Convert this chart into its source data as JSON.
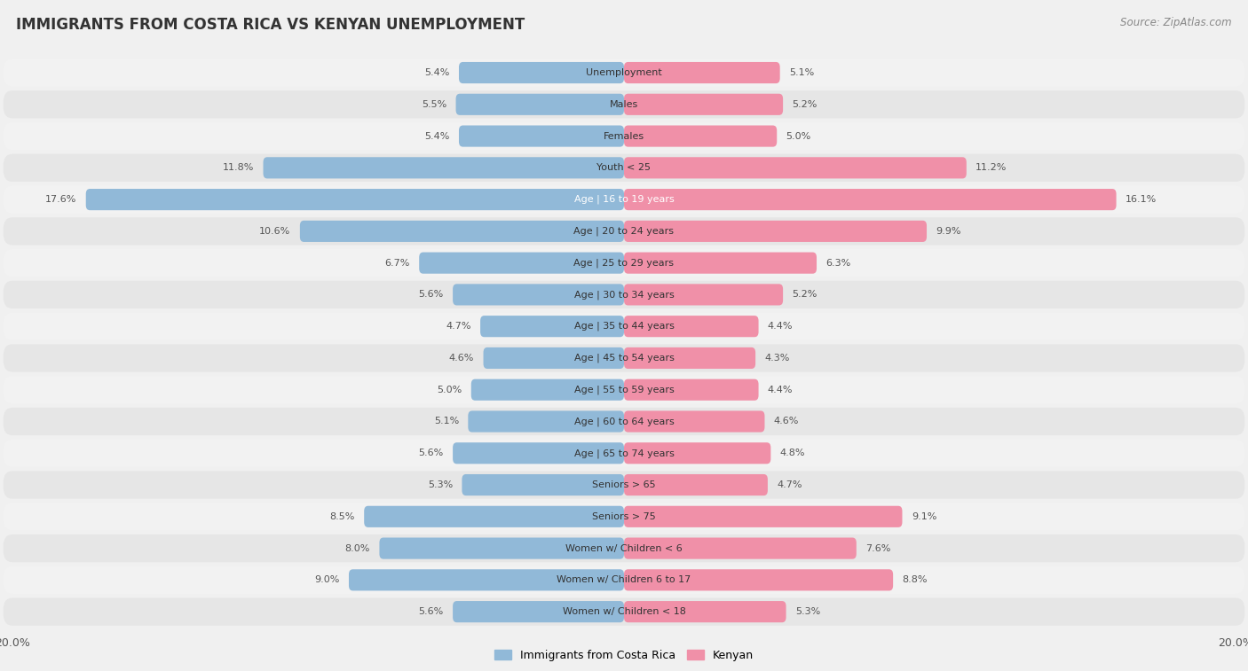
{
  "title": "IMMIGRANTS FROM COSTA RICA VS KENYAN UNEMPLOYMENT",
  "source": "Source: ZipAtlas.com",
  "categories": [
    "Unemployment",
    "Males",
    "Females",
    "Youth < 25",
    "Age | 16 to 19 years",
    "Age | 20 to 24 years",
    "Age | 25 to 29 years",
    "Age | 30 to 34 years",
    "Age | 35 to 44 years",
    "Age | 45 to 54 years",
    "Age | 55 to 59 years",
    "Age | 60 to 64 years",
    "Age | 65 to 74 years",
    "Seniors > 65",
    "Seniors > 75",
    "Women w/ Children < 6",
    "Women w/ Children 6 to 17",
    "Women w/ Children < 18"
  ],
  "left_values": [
    5.4,
    5.5,
    5.4,
    11.8,
    17.6,
    10.6,
    6.7,
    5.6,
    4.7,
    4.6,
    5.0,
    5.1,
    5.6,
    5.3,
    8.5,
    8.0,
    9.0,
    5.6
  ],
  "right_values": [
    5.1,
    5.2,
    5.0,
    11.2,
    16.1,
    9.9,
    6.3,
    5.2,
    4.4,
    4.3,
    4.4,
    4.6,
    4.8,
    4.7,
    9.1,
    7.6,
    8.8,
    5.3
  ],
  "left_color": "#91b9d8",
  "right_color": "#f090a8",
  "left_color_dark": "#6096c4",
  "right_color_dark": "#e8607c",
  "row_bg_light": "#f2f2f2",
  "row_bg_dark": "#e6e6e6",
  "label_color_dark": "#333333",
  "label_color_light": "#ffffff",
  "value_color": "#555555",
  "left_label": "Immigrants from Costa Rica",
  "right_label": "Kenyan",
  "axis_max": 20.0,
  "background_color": "#f0f0f0",
  "title_fontsize": 12,
  "source_fontsize": 8.5,
  "cat_fontsize": 8.0,
  "value_fontsize": 8.0
}
